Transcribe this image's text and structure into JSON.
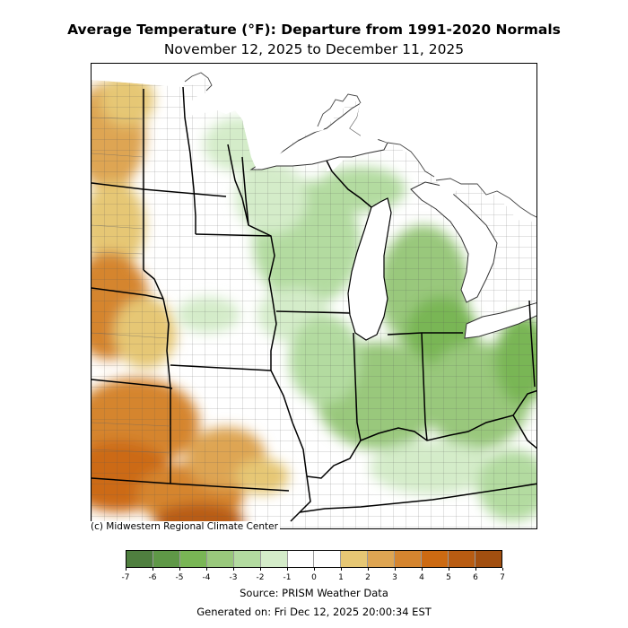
{
  "header": {
    "title": "Average Temperature (°F): Departure from 1991-2020 Normals",
    "subtitle": "November 12, 2025 to December 11, 2025"
  },
  "map": {
    "credit": "(c) Midwestern Regional Climate Center",
    "region": "Midwestern United States and Great Lakes"
  },
  "legend": {
    "tick_labels": [
      "-7",
      "-6",
      "-5",
      "-4",
      "-3",
      "-2",
      "-1",
      "0",
      "1",
      "2",
      "3",
      "4",
      "5",
      "6",
      "7"
    ],
    "colors": [
      "#4f7f3f",
      "#5f9847",
      "#79b655",
      "#99c87c",
      "#b3dba0",
      "#d4ecc9",
      "#ffffff",
      "#ffffff",
      "#e6c774",
      "#dea552",
      "#d5852f",
      "#cc6a12",
      "#b85c12",
      "#a24f10"
    ]
  },
  "footer": {
    "source": "Source: PRISM Weather Data",
    "generated": "Generated on: Fri Dec 12, 2025 20:00:34 EST"
  }
}
